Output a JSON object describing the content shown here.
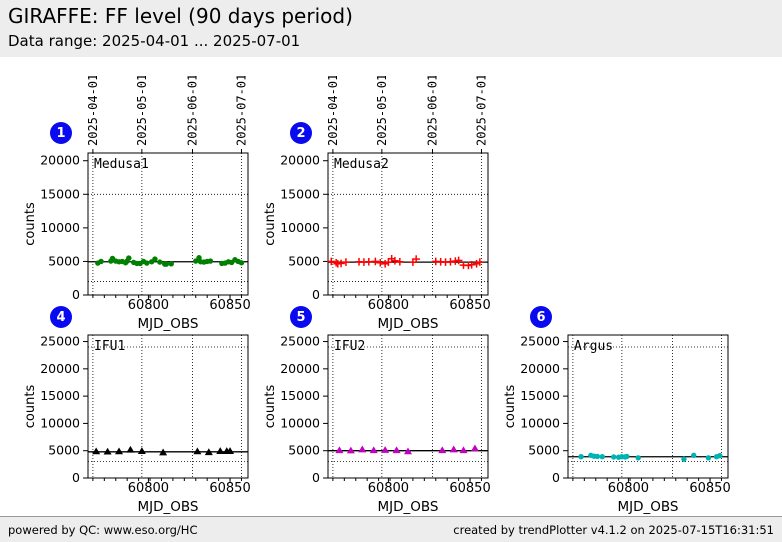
{
  "header": {
    "title": "GIRAFFE: FF level (90 days period)",
    "subtitle": "Data range: 2025-04-01 ... 2025-07-01"
  },
  "footer": {
    "left": "powered by QC: www.eso.org/HC",
    "right": "created by trendPlotter v4.1.2 on 2025-07-15T16:31:51"
  },
  "badges": [
    {
      "label": "1"
    },
    {
      "label": "2"
    },
    {
      "label": "4"
    },
    {
      "label": "5"
    },
    {
      "label": "6"
    }
  ],
  "chart_data": [
    {
      "id": "medusa1",
      "row": 1,
      "col": 0,
      "badge": "1",
      "type": "scatter",
      "title": "Medusa1",
      "marker": "circle",
      "color": "#008000",
      "xlabel": "MJD_OBS",
      "ylabel": "counts",
      "xlim": [
        60763,
        60861
      ],
      "ylim": [
        0,
        21150
      ],
      "x_major_ticks": [
        60800,
        60850
      ],
      "y_ticks": [
        0,
        5000,
        10000,
        15000,
        20000
      ],
      "month_lines": [
        {
          "mjd": 60766,
          "label": "2025-04-01"
        },
        {
          "mjd": 60796,
          "label": "2025-05-01"
        },
        {
          "mjd": 60827,
          "label": "2025-06-01"
        },
        {
          "mjd": 60857,
          "label": "2025-07-01"
        }
      ],
      "thresholds": [
        2000,
        15000
      ],
      "mean_line": 4950,
      "points": [
        [
          60769,
          4750
        ],
        [
          60771,
          5000
        ],
        [
          60777,
          5050
        ],
        [
          60778,
          5450
        ],
        [
          60780,
          5050
        ],
        [
          60782,
          4950
        ],
        [
          60784,
          5000
        ],
        [
          60786,
          4800
        ],
        [
          60787,
          5050
        ],
        [
          60788,
          5500
        ],
        [
          60791,
          4850
        ],
        [
          60793,
          4700
        ],
        [
          60795,
          4700
        ],
        [
          60797,
          5000
        ],
        [
          60799,
          4750
        ],
        [
          60802,
          4950
        ],
        [
          60804,
          5350
        ],
        [
          60807,
          4900
        ],
        [
          60810,
          4600
        ],
        [
          60811,
          4600
        ],
        [
          60814,
          4650
        ],
        [
          60829,
          5050
        ],
        [
          60831,
          5550
        ],
        [
          60832,
          4950
        ],
        [
          60834,
          4900
        ],
        [
          60836,
          5000
        ],
        [
          60838,
          5050
        ],
        [
          60845,
          4700
        ],
        [
          60847,
          4750
        ],
        [
          60849,
          4950
        ],
        [
          60851,
          4850
        ],
        [
          60853,
          5250
        ],
        [
          60855,
          5000
        ],
        [
          60857,
          4800
        ]
      ]
    },
    {
      "id": "medusa2",
      "row": 1,
      "col": 1,
      "badge": "2",
      "type": "scatter",
      "title": "Medusa2",
      "marker": "plus",
      "color": "#ff0000",
      "xlabel": "MJD_OBS",
      "ylabel": "counts",
      "xlim": [
        60763,
        60861
      ],
      "ylim": [
        0,
        21150
      ],
      "x_major_ticks": [
        60800,
        60850
      ],
      "y_ticks": [
        0,
        5000,
        10000,
        15000,
        20000
      ],
      "month_lines": [
        {
          "mjd": 60766,
          "label": "2025-04-01"
        },
        {
          "mjd": 60796,
          "label": "2025-05-01"
        },
        {
          "mjd": 60827,
          "label": "2025-06-01"
        },
        {
          "mjd": 60857,
          "label": "2025-07-01"
        }
      ],
      "thresholds": [
        2000,
        15000
      ],
      "mean_line": 4900,
      "points": [
        [
          60765,
          5000
        ],
        [
          60768,
          4800
        ],
        [
          60769,
          4650
        ],
        [
          60771,
          4700
        ],
        [
          60774,
          4900
        ],
        [
          60782,
          4950
        ],
        [
          60785,
          4900
        ],
        [
          60788,
          4950
        ],
        [
          60792,
          5000
        ],
        [
          60795,
          4800
        ],
        [
          60798,
          4650
        ],
        [
          60800,
          4900
        ],
        [
          60802,
          5400
        ],
        [
          60804,
          5100
        ],
        [
          60807,
          4950
        ],
        [
          60815,
          4900
        ],
        [
          60817,
          5350
        ],
        [
          60829,
          5000
        ],
        [
          60832,
          4950
        ],
        [
          60835,
          4900
        ],
        [
          60838,
          4950
        ],
        [
          60841,
          5050
        ],
        [
          60843,
          5150
        ],
        [
          60846,
          4450
        ],
        [
          60849,
          4400
        ],
        [
          60851,
          4500
        ],
        [
          60854,
          4650
        ],
        [
          60856,
          4900
        ]
      ]
    },
    {
      "id": "ifu1",
      "row": 2,
      "col": 0,
      "badge": "4",
      "type": "scatter",
      "title": "IFU1",
      "marker": "triangle",
      "color": "#000000",
      "xlabel": "MJD_OBS",
      "ylabel": "counts",
      "xlim": [
        60763,
        60861
      ],
      "ylim": [
        0,
        26200
      ],
      "x_major_ticks": [
        60800,
        60850
      ],
      "y_ticks": [
        0,
        5000,
        10000,
        15000,
        20000,
        25000
      ],
      "month_lines": [
        {
          "mjd": 60766,
          "label": "2025-04-01"
        },
        {
          "mjd": 60796,
          "label": "2025-05-01"
        },
        {
          "mjd": 60827,
          "label": "2025-06-01"
        },
        {
          "mjd": 60857,
          "label": "2025-07-01"
        }
      ],
      "thresholds": [
        3000,
        24000
      ],
      "mean_line": 4800,
      "points": [
        [
          60768,
          4900
        ],
        [
          60775,
          4850
        ],
        [
          60782,
          4900
        ],
        [
          60789,
          5200
        ],
        [
          60796,
          4950
        ],
        [
          60809,
          4700
        ],
        [
          60830,
          4900
        ],
        [
          60837,
          4750
        ],
        [
          60844,
          4950
        ],
        [
          60848,
          4950
        ],
        [
          60850,
          4950
        ]
      ]
    },
    {
      "id": "ifu2",
      "row": 2,
      "col": 1,
      "badge": "5",
      "type": "scatter",
      "title": "IFU2",
      "marker": "triangle",
      "color": "#c400c4",
      "xlabel": "MJD_OBS",
      "ylabel": "counts",
      "xlim": [
        60763,
        60861
      ],
      "ylim": [
        0,
        26200
      ],
      "x_major_ticks": [
        60800,
        60850
      ],
      "y_ticks": [
        0,
        5000,
        10000,
        15000,
        20000,
        25000
      ],
      "month_lines": [
        {
          "mjd": 60766,
          "label": "2025-04-01"
        },
        {
          "mjd": 60796,
          "label": "2025-05-01"
        },
        {
          "mjd": 60827,
          "label": "2025-06-01"
        },
        {
          "mjd": 60857,
          "label": "2025-07-01"
        }
      ],
      "thresholds": [
        3000,
        24000
      ],
      "mean_line": 5000,
      "points": [
        [
          60770,
          5100
        ],
        [
          60777,
          5050
        ],
        [
          60784,
          5250
        ],
        [
          60791,
          5100
        ],
        [
          60798,
          5150
        ],
        [
          60805,
          5100
        ],
        [
          60812,
          4900
        ],
        [
          60833,
          5100
        ],
        [
          60840,
          5250
        ],
        [
          60846,
          5100
        ],
        [
          60853,
          5450
        ]
      ]
    },
    {
      "id": "argus",
      "row": 2,
      "col": 2,
      "badge": "6",
      "type": "scatter",
      "title": "Argus",
      "marker": "circle",
      "color": "#00b3b3",
      "xlabel": "MJD_OBS",
      "ylabel": "counts",
      "xlim": [
        60763,
        60861
      ],
      "ylim": [
        0,
        26200
      ],
      "x_major_ticks": [
        60800,
        60850
      ],
      "y_ticks": [
        0,
        5000,
        10000,
        15000,
        20000,
        25000
      ],
      "month_lines": [
        {
          "mjd": 60766,
          "label": "2025-04-01"
        },
        {
          "mjd": 60796,
          "label": "2025-05-01"
        },
        {
          "mjd": 60827,
          "label": "2025-06-01"
        },
        {
          "mjd": 60857,
          "label": "2025-07-01"
        }
      ],
      "thresholds": [
        3000,
        24000
      ],
      "mean_line": 3900,
      "points": [
        [
          60771,
          3900
        ],
        [
          60777,
          4150
        ],
        [
          60779,
          4000
        ],
        [
          60781,
          3950
        ],
        [
          60784,
          3900
        ],
        [
          60791,
          3850
        ],
        [
          60794,
          3800
        ],
        [
          60796,
          3900
        ],
        [
          60798,
          3850
        ],
        [
          60799,
          3950
        ],
        [
          60806,
          3700
        ],
        [
          60834,
          3450
        ],
        [
          60840,
          4150
        ],
        [
          60849,
          3700
        ],
        [
          60854,
          3900
        ],
        [
          60856,
          4100
        ]
      ]
    }
  ]
}
